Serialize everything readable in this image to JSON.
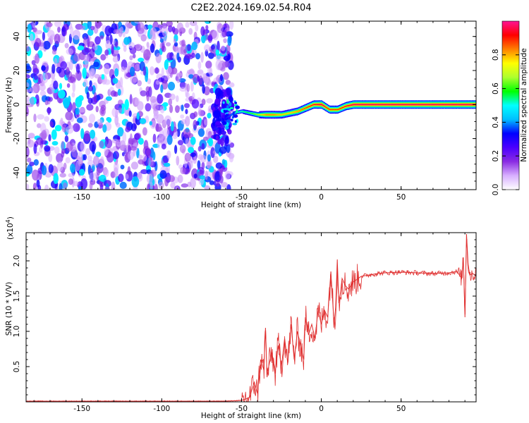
{
  "figure": {
    "title": "C2E2.2024.169.02.54.R04"
  },
  "chart_data": [
    {
      "type": "heatmap",
      "name": "spectrogram",
      "xlabel": "Height of straight line (km)",
      "ylabel": "Frequency (Hz)",
      "xlim": [
        -185,
        97
      ],
      "ylim": [
        -50,
        49
      ],
      "xticks": [
        -150,
        -100,
        -50,
        0,
        50
      ],
      "yticks": [
        -40,
        -20,
        0,
        20,
        40
      ],
      "colorbar": {
        "label": "Normalized spectral amplitude",
        "range": [
          0,
          1
        ],
        "ticks": [
          0.0,
          0.2,
          0.4,
          0.6,
          0.8
        ],
        "colors": [
          "#ffffff",
          "#d8b0ff",
          "#8a2be2",
          "#4b00ff",
          "#0000ff",
          "#00bfff",
          "#00ffff",
          "#00ff00",
          "#adff2f",
          "#ffff00",
          "#ff8000",
          "#ff0000",
          "#ff1493"
        ]
      },
      "noise_region_x": [
        -185,
        -60
      ],
      "ridge": {
        "x": [
          -60,
          -55,
          -50,
          -45,
          -40,
          -35,
          -30,
          -25,
          -20,
          -15,
          -10,
          -5,
          0,
          5,
          10,
          15,
          20,
          30,
          40,
          60,
          80,
          97
        ],
        "y": [
          -8,
          -5,
          -4,
          -5,
          -6,
          -6,
          -6,
          -6,
          -5,
          -4,
          -2,
          0,
          0,
          -3,
          -3,
          -1,
          0,
          0,
          0,
          0,
          0,
          0
        ],
        "peak": [
          0.35,
          0.45,
          0.55,
          0.6,
          0.7,
          0.85,
          0.85,
          0.8,
          0.8,
          0.85,
          0.9,
          0.95,
          1.0,
          0.9,
          0.9,
          0.95,
          1.0,
          1.0,
          1.0,
          1.0,
          1.0,
          1.0
        ]
      }
    },
    {
      "type": "line",
      "name": "snr",
      "xlabel": "Height of straight line (km)",
      "ylabel": "SNR (10 * V/V)",
      "yscale_label": "(x10",
      "yscale_exponent": "4",
      "xlim": [
        -185,
        97
      ],
      "ylim": [
        0.0,
        2.4
      ],
      "xticks": [
        -150,
        -100,
        -50,
        0,
        50
      ],
      "yticks": [
        0.5,
        1.0,
        1.5,
        2.0
      ],
      "color": "#e03030",
      "series": [
        {
          "x": [
            -185,
            -150,
            -100,
            -60,
            -50,
            -45,
            -42,
            -40,
            -38,
            -36,
            -35,
            -34,
            -33,
            -31,
            -29,
            -27,
            -25,
            -23,
            -21,
            -19,
            -17,
            -15,
            -13,
            -11,
            -10,
            -8,
            -6,
            -4,
            -2,
            0,
            2,
            4,
            6,
            8,
            9,
            10,
            11,
            12,
            13,
            15,
            17,
            20,
            25,
            30,
            35,
            40,
            50,
            60,
            70,
            80,
            85,
            88,
            89,
            90,
            91,
            92,
            93,
            95,
            97
          ],
          "y": [
            0.01,
            0.01,
            0.01,
            0.01,
            0.02,
            0.06,
            0.28,
            0.12,
            0.6,
            0.45,
            1.05,
            0.35,
            0.5,
            0.7,
            0.4,
            0.8,
            0.5,
            0.9,
            0.55,
            1.1,
            0.6,
            1.0,
            0.8,
            0.6,
            1.2,
            0.95,
            1.1,
            0.9,
            1.3,
            1.1,
            1.3,
            1.2,
            1.85,
            1.1,
            1.35,
            2.02,
            1.4,
            1.55,
            1.75,
            1.65,
            1.6,
            1.7,
            1.78,
            1.8,
            1.82,
            1.83,
            1.84,
            1.83,
            1.82,
            1.83,
            1.85,
            1.75,
            2.05,
            1.2,
            2.38,
            1.95,
            1.8,
            1.82,
            1.78
          ]
        }
      ]
    }
  ]
}
